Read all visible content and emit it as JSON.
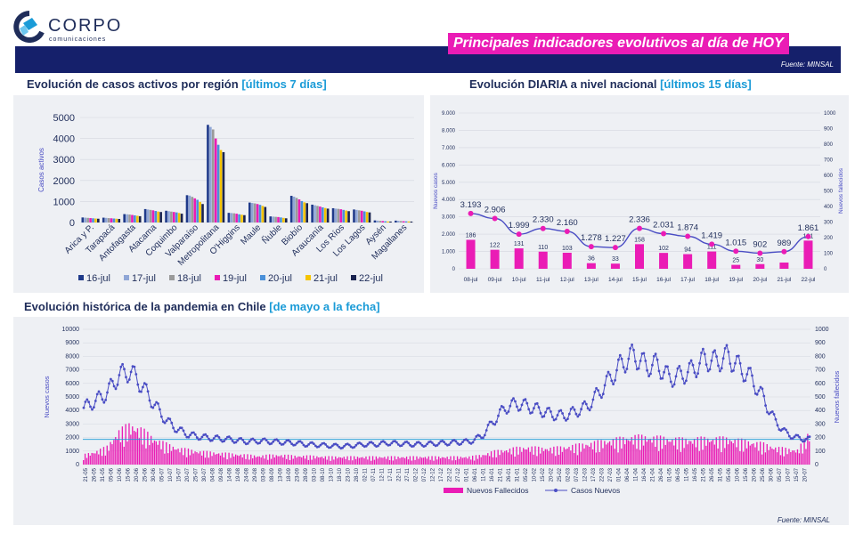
{
  "logo": {
    "name": "CORPO",
    "tagline": "comunicaciones"
  },
  "header": {
    "title": "Principales indicadores evolutivos al día de HOY",
    "source": "Fuente: MINSAL"
  },
  "section1": {
    "title": "Evolución de casos activos por región",
    "range": "[últimos 7 días]"
  },
  "section2": {
    "title": "Evolución DIARIA  a nivel nacional",
    "range": "[últimos 15 días]"
  },
  "section3": {
    "title": "Evolución histórica de la pandemia en Chile",
    "range": "[de mayo a la fecha]"
  },
  "footer": {
    "source": "Fuente: MINSAL"
  },
  "colors": {
    "navy": "#15206b",
    "magenta": "#ea1cb5",
    "accent_blue": "#1a9bd7",
    "line_blue": "#4a4dc4"
  },
  "chart_data": [
    {
      "type": "bar",
      "title": "Evolución de casos activos por región",
      "ylabel": "Casos activos",
      "ylim": [
        0,
        5000
      ],
      "yticks": [
        0,
        1000,
        2000,
        3000,
        4000,
        5000
      ],
      "categories": [
        "Arica y P.",
        "Tarapacá",
        "Antofagasta",
        "Atacama",
        "Coquimbo",
        "Valparaíso",
        "Metropolitana",
        "O'Higgins",
        "Maule",
        "Ñuble",
        "Biobío",
        "Araucanía",
        "Los Ríos",
        "Los Lagos",
        "Aysén",
        "Magallanes"
      ],
      "legend_position": "bottom",
      "series": [
        {
          "name": "16-jul",
          "color": "#1f3a8a",
          "values": [
            240,
            230,
            400,
            640,
            560,
            1300,
            4650,
            460,
            950,
            290,
            1270,
            850,
            680,
            620,
            100,
            90
          ]
        },
        {
          "name": "17-jul",
          "color": "#8fa6d6",
          "values": [
            230,
            220,
            390,
            620,
            540,
            1280,
            4550,
            450,
            930,
            280,
            1230,
            820,
            660,
            600,
            90,
            80
          ]
        },
        {
          "name": "18-jul",
          "color": "#9a9a9a",
          "values": [
            220,
            210,
            380,
            600,
            520,
            1220,
            4430,
            440,
            910,
            270,
            1170,
            790,
            650,
            580,
            80,
            70
          ]
        },
        {
          "name": "19-jul",
          "color": "#ea1cb5",
          "values": [
            210,
            200,
            360,
            580,
            500,
            1150,
            4000,
            420,
            880,
            260,
            1100,
            760,
            630,
            560,
            70,
            60
          ]
        },
        {
          "name": "20-jul",
          "color": "#4a90d9",
          "values": [
            200,
            190,
            340,
            550,
            480,
            1080,
            3700,
            390,
            840,
            240,
            1020,
            720,
            600,
            530,
            60,
            55
          ]
        },
        {
          "name": "21-jul",
          "color": "#f5c400",
          "values": [
            190,
            180,
            320,
            520,
            450,
            980,
            3450,
            370,
            790,
            220,
            960,
            690,
            570,
            500,
            50,
            50
          ]
        },
        {
          "name": "22-jul",
          "color": "#1a2450",
          "values": [
            180,
            170,
            300,
            500,
            420,
            880,
            3350,
            350,
            740,
            200,
            920,
            660,
            540,
            480,
            45,
            45
          ]
        }
      ]
    },
    {
      "type": "bar",
      "title": "Evolución DIARIA  a nivel nacional",
      "ylabel": "Nuevos casos",
      "y2label": "Nuevos fallecidos",
      "ylim": [
        0,
        9000
      ],
      "y2lim": [
        0,
        1000
      ],
      "yticks": [
        "0",
        "1.000",
        "2.000",
        "3.000",
        "4.000",
        "5.000",
        "6.000",
        "7.000",
        "8.000",
        "9.000"
      ],
      "y2ticks": [
        "0",
        "100",
        "200",
        "300",
        "400",
        "500",
        "600",
        "700",
        "800",
        "900",
        "1000"
      ],
      "categories": [
        "08-jul",
        "09-jul",
        "10-jul",
        "11-jul",
        "12-jul",
        "13-jul",
        "14-jul",
        "15-jul",
        "16-jul",
        "17-jul",
        "18-jul",
        "19-jul",
        "20-jul",
        "21-jul",
        "22-jul"
      ],
      "bars_fallecidos": [
        186,
        122,
        131,
        110,
        103,
        36,
        33,
        158,
        102,
        94,
        111,
        25,
        30,
        40,
        181
      ],
      "bar_labels": [
        "186",
        "122",
        "131",
        "110",
        "103",
        "36",
        "33",
        "158",
        "102",
        "94",
        "111",
        "25",
        "30",
        "",
        "181"
      ],
      "line_casos": [
        3193,
        2906,
        1999,
        2330,
        2160,
        1278,
        1227,
        2336,
        2031,
        1874,
        1419,
        1015,
        902,
        989,
        1861
      ],
      "line_labels": [
        "3.193",
        "2.906",
        "1.999",
        "2.330",
        "2.160",
        "1.278",
        "1.227",
        "2.336",
        "2.031",
        "1.874",
        "1.419",
        "1.015",
        "902",
        "989",
        "1.861"
      ]
    },
    {
      "type": "line",
      "title": "Evolución histórica de la pandemia en Chile",
      "ylabel": "Nuevos casos",
      "y2label": "Nuevos fallecidos",
      "ylim": [
        0,
        10000
      ],
      "y2lim": [
        0,
        1000
      ],
      "yticks": [
        "0",
        "500",
        "1000",
        "1500",
        "2000",
        "2500",
        "3000",
        "3500",
        "4000",
        "4500",
        "5000",
        "5500",
        "6000",
        "6500",
        "7000",
        "7500",
        "8000",
        "8500",
        "9000",
        "9500",
        "10000"
      ],
      "y2ticks": [
        "0",
        "100",
        "200",
        "300",
        "400",
        "500",
        "600",
        "700",
        "800",
        "900",
        "1000"
      ],
      "reference_line": 1861,
      "legend": [
        "Nuevos Fallecidos",
        "Casos Nuevos"
      ],
      "legend_position": "bottom",
      "x_labels": [
        "21-05",
        "26-05",
        "31-05",
        "05-06",
        "10-06",
        "15-06",
        "20-06",
        "25-06",
        "30-06",
        "05-07",
        "10-07",
        "15-07",
        "20-07",
        "25-07",
        "30-07",
        "04-08",
        "09-08",
        "14-08",
        "19-08",
        "24-08",
        "29-08",
        "03-09",
        "08-09",
        "13-09",
        "18-09",
        "23-09",
        "28-09",
        "03-10",
        "08-10",
        "13-10",
        "18-10",
        "23-10",
        "28-10",
        "02-11",
        "07-11",
        "12-11",
        "17-11",
        "22-11",
        "27-11",
        "02-12",
        "07-12",
        "12-12",
        "17-12",
        "22-12",
        "27-12",
        "01-01",
        "06-01",
        "11-01",
        "16-01",
        "21-01",
        "26-01",
        "31-01",
        "05-02",
        "10-02",
        "15-02",
        "20-02",
        "25-02",
        "02-03",
        "07-03",
        "12-03",
        "17-03",
        "22-03",
        "27-03",
        "01-04",
        "06-04",
        "11-04",
        "16-04",
        "21-04",
        "26-04",
        "01-05",
        "06-05",
        "11-05",
        "16-05",
        "21-05",
        "26-05",
        "31-05",
        "05-06",
        "10-06",
        "15-06",
        "20-06",
        "25-06",
        "30-06",
        "05-07",
        "10-07",
        "15-07",
        "20-07"
      ],
      "casos_anchors": [
        4200,
        4700,
        5300,
        6600,
        6900,
        5800,
        4500,
        3300,
        2600,
        2200,
        2050,
        1950,
        1900,
        1800,
        1700,
        1750,
        1700,
        1650,
        1600,
        1500,
        1450,
        1400,
        1350,
        1400,
        1500,
        1500,
        1600,
        1550,
        1500,
        1500,
        1550,
        1600,
        1650,
        1700,
        2100,
        3200,
        4200,
        4500,
        4300,
        4000,
        3700,
        3600,
        3900,
        4300,
        5300,
        6400,
        7500,
        8100,
        7300,
        7400,
        6400,
        6600,
        7000,
        7800,
        7600,
        8000,
        7200,
        6400,
        5000,
        3300,
        2300,
        1950,
        1861
      ],
      "fallecidos_anchors": [
        55,
        75,
        100,
        190,
        230,
        200,
        150,
        120,
        95,
        85,
        75,
        70,
        65,
        60,
        55,
        50,
        55,
        55,
        50,
        50,
        48,
        45,
        45,
        45,
        45,
        45,
        45,
        45,
        45,
        45,
        45,
        45,
        45,
        45,
        55,
        75,
        85,
        95,
        100,
        95,
        95,
        100,
        110,
        120,
        130,
        140,
        150,
        160,
        160,
        155,
        150,
        145,
        145,
        150,
        150,
        150,
        140,
        130,
        120,
        100,
        90,
        85,
        181
      ]
    }
  ]
}
